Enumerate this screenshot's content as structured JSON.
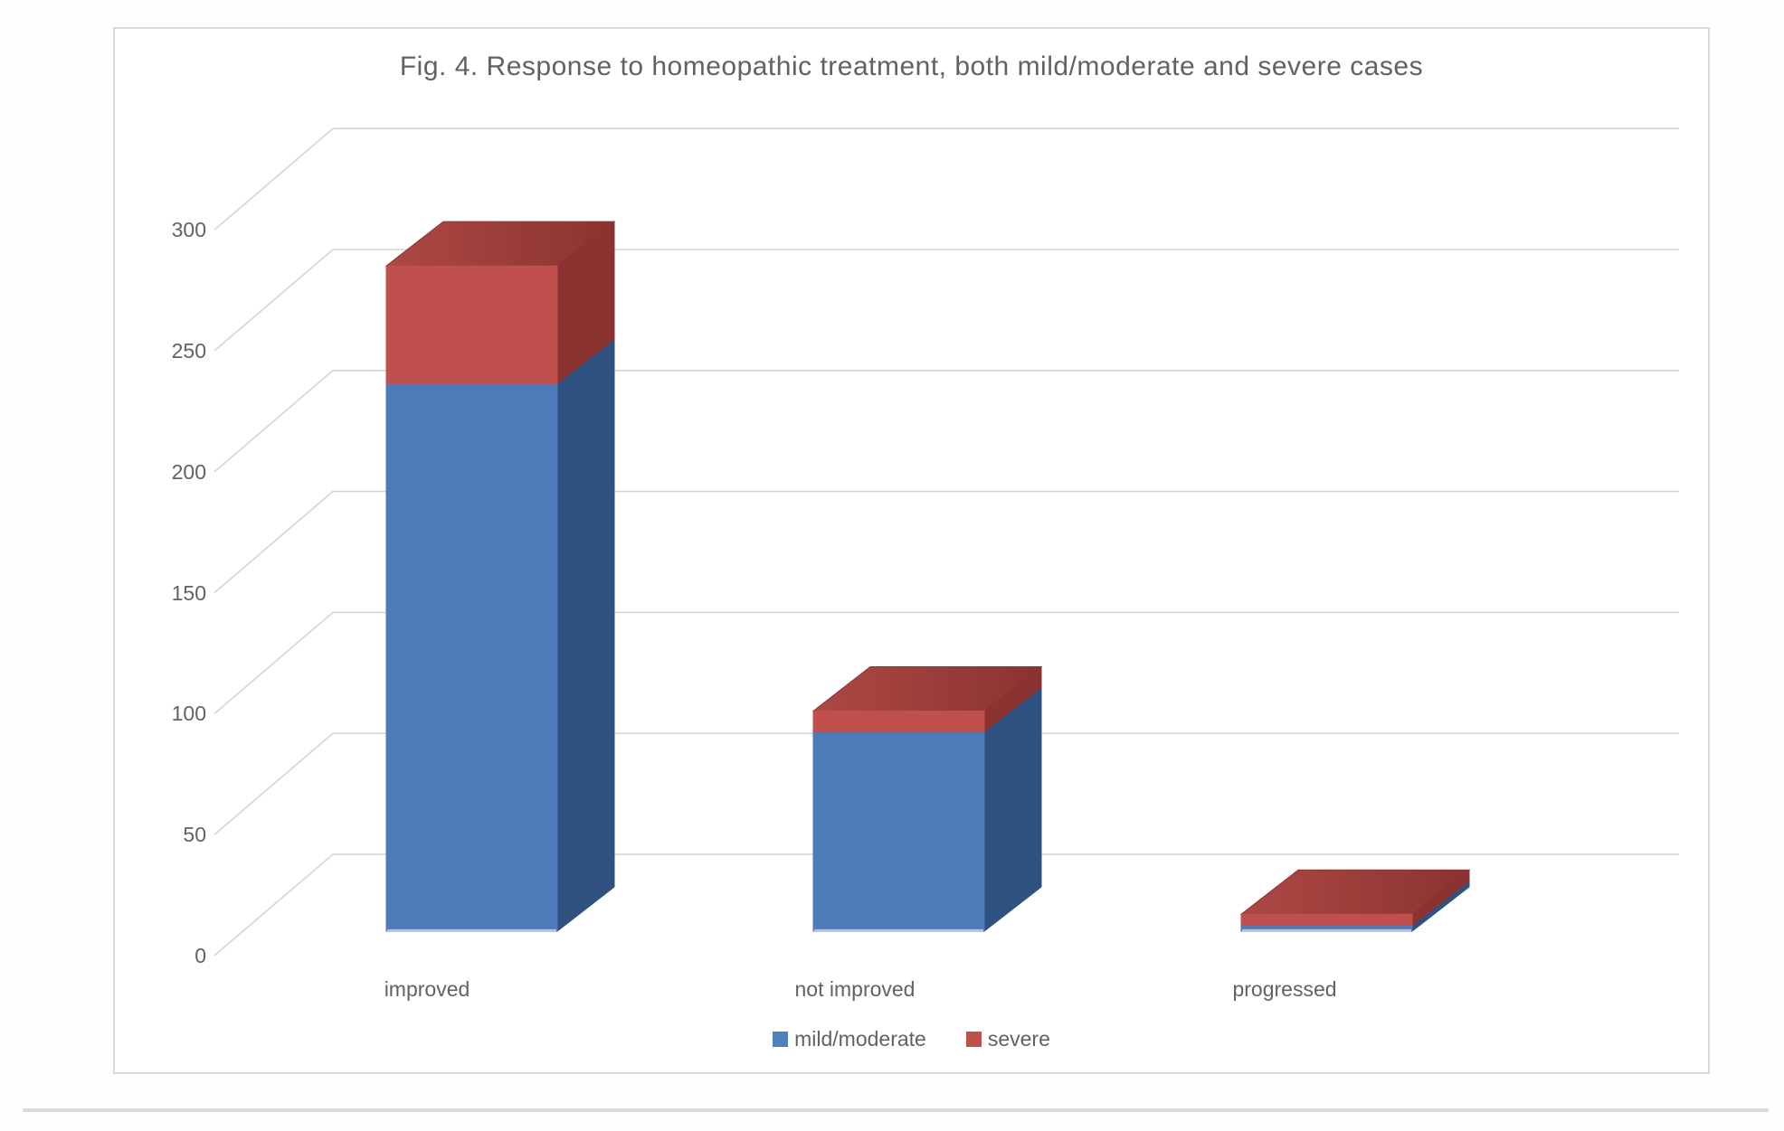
{
  "chart_data": {
    "type": "bar",
    "subtype": "3d-stacked-column",
    "title": "Fig. 4. Response to homeopathic treatment, both mild/moderate and severe cases",
    "categories": [
      "improved",
      "not improved",
      "progressed"
    ],
    "series": [
      {
        "name": "mild/moderate",
        "values": [
          226,
          82,
          2
        ]
      },
      {
        "name": "severe",
        "values": [
          49,
          9,
          5
        ]
      }
    ],
    "xlabel": "",
    "ylabel": "",
    "ylim": [
      0,
      300
    ],
    "ytick_step": 50,
    "yticks": [
      0,
      50,
      100,
      150,
      200,
      250,
      300
    ],
    "grid": true,
    "legend_position": "bottom"
  },
  "colors": {
    "mild_front": "#4d7ab8",
    "mild_side": "#305280",
    "severe_front": "#c0504d",
    "severe_side": "#8a3331",
    "severe_top_light": "#ad4845",
    "severe_top_dark": "#8b3330",
    "legend_mild": "#4f81bd",
    "legend_severe": "#c0504d",
    "bar_bottom_highlight": "#b6c1de",
    "gridline": "#d4d4d4",
    "text": "#626262",
    "chart_border": "#d9d9d9",
    "divider": "#d7d9de",
    "page_background": "#fdfdfd",
    "chart_background": "#ffffff"
  }
}
